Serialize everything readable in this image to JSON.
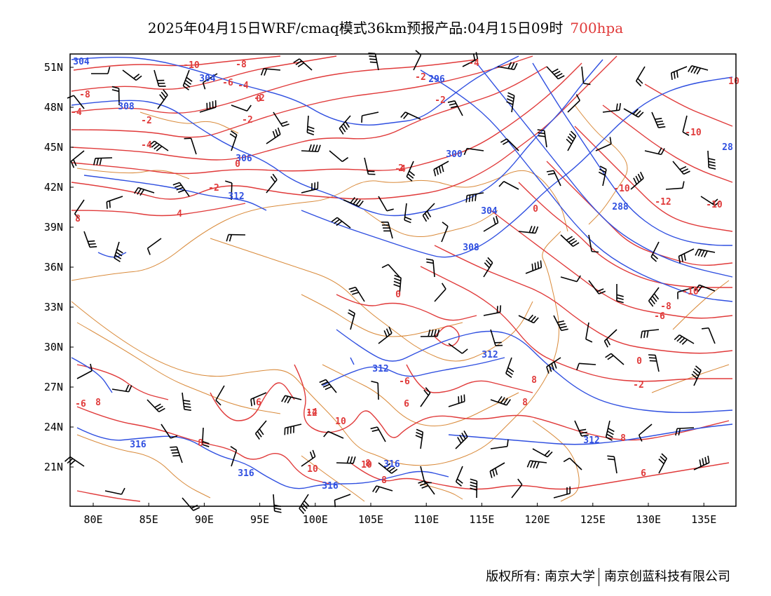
{
  "header": {
    "title": "2025年04月15日WRF/cmaq模式36km预报产品:04月15日09时",
    "level": "700hpa"
  },
  "footer": {
    "copyright_label": "版权所有:",
    "owner_1": "南京大学",
    "owner_2": "南京创蓝科技有限公司"
  },
  "map": {
    "lon_ticks": [
      "80E",
      "85E",
      "90E",
      "95E",
      "100E",
      "105E",
      "110E",
      "115E",
      "120E",
      "125E",
      "130E",
      "135E"
    ],
    "lat_ticks": [
      "51N",
      "48N",
      "45N",
      "42N",
      "39N",
      "36N",
      "33N",
      "30N",
      "27N",
      "24N",
      "21N"
    ],
    "colors": {
      "height_contour": "#2f4fe0",
      "temperature_contour": "#e03a3a",
      "boundary": "#d98a3a",
      "wind_barb": "#000000",
      "frame": "#000000"
    },
    "height_labels": [
      "304",
      "304",
      "296",
      "308",
      "306",
      "312",
      "300",
      "304",
      "308",
      "288",
      "28",
      "312",
      "312",
      "316",
      "316",
      "316",
      "316",
      "312"
    ],
    "temperature_labels": [
      "-10",
      "-8",
      "-6",
      "-4",
      "-2",
      "-8",
      "-4",
      "-2",
      "0",
      "-2",
      "-2",
      "-4",
      "2",
      "0",
      "-2",
      "4",
      "8",
      "-4",
      "-4",
      "-2",
      "-10",
      "-10",
      "-12",
      "-10",
      "0",
      "-8",
      "-6",
      "-10",
      "0",
      "-2",
      "-6",
      "8",
      "12",
      "10",
      "10",
      "6",
      "8",
      "8",
      "6",
      "8",
      "8",
      "6",
      "8",
      "10",
      "0",
      "10",
      "-6",
      "-4",
      "8"
    ],
    "icons": [
      "wind-barb-icon"
    ]
  }
}
